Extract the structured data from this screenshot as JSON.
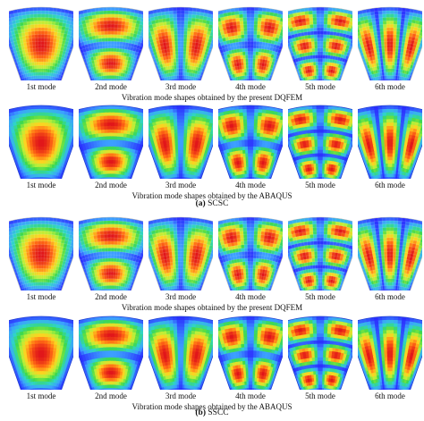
{
  "subfigures": [
    {
      "tag": "(a)",
      "name": "SCSC",
      "rows": [
        {
          "caption": "Vibration mode shapes obtained by the present DQFEM",
          "mesh": true,
          "modes": [
            {
              "label": "1st mode",
              "nr": 1,
              "nt": 1
            },
            {
              "label": "2nd mode",
              "nr": 2,
              "nt": 1
            },
            {
              "label": "3rd mode",
              "nr": 1,
              "nt": 2
            },
            {
              "label": "4th mode",
              "nr": 2,
              "nt": 2
            },
            {
              "label": "5th mode",
              "nr": 3,
              "nt": 2
            },
            {
              "label": "6th mode",
              "nr": 1,
              "nt": 3
            }
          ]
        },
        {
          "caption": "Vibration mode shapes obtained by the ABAQUS",
          "mesh": false,
          "modes": [
            {
              "label": "1st mode",
              "nr": 1,
              "nt": 1
            },
            {
              "label": "2nd mode",
              "nr": 2,
              "nt": 1
            },
            {
              "label": "3rd mode",
              "nr": 1,
              "nt": 2
            },
            {
              "label": "4th mode",
              "nr": 2,
              "nt": 2
            },
            {
              "label": "5th mode",
              "nr": 3,
              "nt": 2
            },
            {
              "label": "6th mode",
              "nr": 1,
              "nt": 3
            }
          ]
        }
      ]
    },
    {
      "tag": "(b)",
      "name": "SSCC",
      "rows": [
        {
          "caption": "Vibration mode shapes obtained by the present DQFEM",
          "mesh": true,
          "modes": [
            {
              "label": "1st mode",
              "nr": 1,
              "nt": 1
            },
            {
              "label": "2nd mode",
              "nr": 2,
              "nt": 1
            },
            {
              "label": "3rd mode",
              "nr": 1,
              "nt": 2
            },
            {
              "label": "4th mode",
              "nr": 2,
              "nt": 2
            },
            {
              "label": "5th mode",
              "nr": 3,
              "nt": 2
            },
            {
              "label": "6th mode",
              "nr": 1,
              "nt": 3
            }
          ]
        },
        {
          "caption": "Vibration mode shapes obtained by the ABAQUS",
          "mesh": false,
          "modes": [
            {
              "label": "1st mode",
              "nr": 1,
              "nt": 1
            },
            {
              "label": "2nd mode",
              "nr": 2,
              "nt": 1
            },
            {
              "label": "3rd mode",
              "nr": 1,
              "nt": 2
            },
            {
              "label": "4th mode",
              "nr": 2,
              "nt": 2
            },
            {
              "label": "5th mode",
              "nr": 3,
              "nt": 2
            },
            {
              "label": "6th mode",
              "nr": 1,
              "nt": 3
            }
          ]
        }
      ]
    }
  ],
  "colormap": [
    "#2a2aff",
    "#3ca0ff",
    "#2fd4c8",
    "#3fd94a",
    "#b8f03a",
    "#ffd21f",
    "#ff6a14",
    "#e0141a"
  ]
}
